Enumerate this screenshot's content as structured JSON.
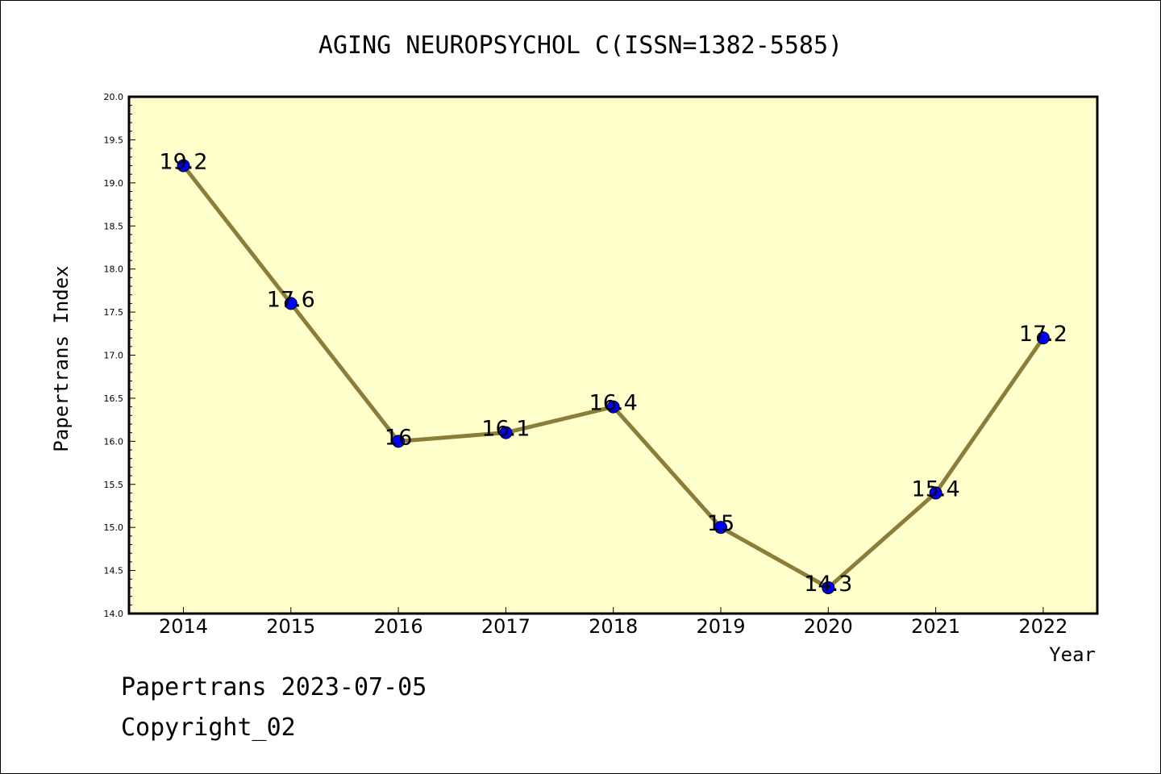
{
  "chart_data": {
    "type": "line",
    "title": "AGING NEUROPSYCHOL C(ISSN=1382-5585)",
    "xlabel": "Year",
    "ylabel": "Papertrans Index",
    "categories": [
      "2014",
      "2015",
      "2016",
      "2017",
      "2018",
      "2019",
      "2020",
      "2021",
      "2022"
    ],
    "values": [
      19.2,
      17.6,
      16,
      16.1,
      16.4,
      15,
      14.3,
      15.4,
      17.2
    ],
    "data_labels": [
      "19.2",
      "17.6",
      "16",
      "16.1",
      "16.4",
      "15",
      "14.3",
      "15.4",
      "17.2"
    ],
    "ylim": [
      14.0,
      20.0
    ],
    "yticks": [
      "14.0",
      "14.5",
      "15.0",
      "15.5",
      "16.0",
      "16.5",
      "17.0",
      "17.5",
      "18.0",
      "18.5",
      "19.0",
      "19.5",
      "20.0"
    ],
    "grid": false,
    "colors": {
      "plot_background": "#ffffcc",
      "line": "#8b7d3a",
      "marker": "#0000ff"
    }
  },
  "footer": {
    "line1": "Papertrans 2023-07-05",
    "line2": "Copyright_02"
  }
}
